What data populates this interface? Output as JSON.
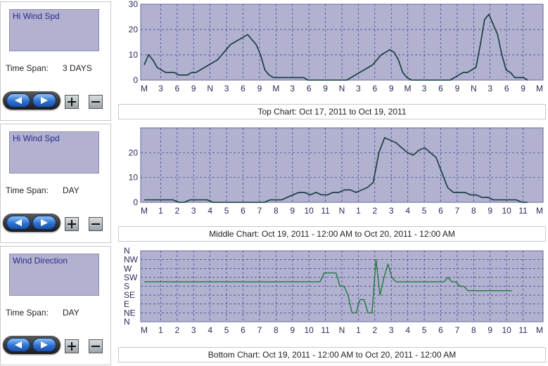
{
  "panels": [
    {
      "variable": "Hi Wind Spd",
      "time_span_label": "Time Span:",
      "time_span_value": "3 DAYS"
    },
    {
      "variable": "Hi Wind Spd",
      "time_span_label": "Time Span:",
      "time_span_value": "DAY"
    },
    {
      "variable": "Wind Direction",
      "time_span_label": "Time Span:",
      "time_span_value": "DAY"
    }
  ],
  "captions": {
    "top": "Top Chart:  Oct 17, 2011  to  Oct 19, 2011",
    "middle": "Middle Chart:  Oct 19, 2011 - 12:00 AM  to  Oct 20, 2011 - 12:00 AM",
    "bottom": "Bottom Chart:  Oct 19, 2011 - 12:00 AM  to  Oct 20, 2011 - 12:00 AM"
  },
  "colors": {
    "plot_bg": "#b2b1d0",
    "speed_line": "#0f3b38",
    "direction_line": "#1f7a3c",
    "grid": "#3a3a8a"
  },
  "chart_data": [
    {
      "type": "line",
      "series": [
        {
          "values": [
            6,
            10,
            8,
            5,
            4,
            3,
            3,
            3,
            2,
            2,
            2,
            3,
            3,
            4,
            5,
            6,
            7,
            8,
            10,
            12,
            14,
            15,
            16,
            17,
            18,
            16,
            14,
            10,
            4,
            2,
            1,
            1,
            1,
            1,
            1,
            1,
            1,
            1,
            0,
            0,
            0,
            0,
            0,
            0,
            0,
            0,
            0,
            0,
            1,
            2,
            3,
            4,
            5,
            6,
            8,
            10,
            11,
            12,
            11,
            8,
            3,
            1,
            0,
            0,
            0,
            0,
            0,
            0,
            0,
            0,
            0,
            0,
            1,
            2,
            3,
            3,
            4,
            5,
            14,
            24,
            26,
            22,
            18,
            10,
            4,
            3,
            1,
            1,
            1,
            0
          ]
        }
      ],
      "x_tick_labels": [
        "M",
        "3",
        "6",
        "9",
        "N",
        "3",
        "6",
        "9",
        "M",
        "3",
        "6",
        "9",
        "N",
        "3",
        "6",
        "9",
        "M",
        "3",
        "6",
        "9",
        "N",
        "3",
        "6",
        "9",
        "M"
      ],
      "y_ticks": [
        0,
        10,
        20,
        30
      ],
      "ylim": [
        0,
        30
      ],
      "grid": true
    },
    {
      "type": "line",
      "series": [
        {
          "values": [
            1,
            1,
            1,
            1,
            1,
            1,
            0,
            0,
            1,
            1,
            1,
            1,
            0,
            0,
            0,
            0,
            0,
            0,
            0,
            0,
            0,
            0,
            1,
            1,
            1,
            2,
            3,
            4,
            4,
            3,
            4,
            3,
            3,
            4,
            4,
            5,
            5,
            4,
            5,
            6,
            8,
            20,
            26,
            25,
            24,
            22,
            20,
            19,
            21,
            22,
            20,
            18,
            12,
            6,
            4,
            4,
            4,
            3,
            3,
            2,
            2,
            1,
            1,
            1,
            1,
            1,
            0,
            0
          ]
        }
      ],
      "x_tick_labels": [
        "M",
        "1",
        "2",
        "3",
        "4",
        "5",
        "6",
        "7",
        "8",
        "9",
        "10",
        "11",
        "N",
        "1",
        "2",
        "3",
        "4",
        "5",
        "6",
        "7",
        "8",
        "9",
        "10",
        "11",
        "M"
      ],
      "y_ticks": [
        0,
        10,
        20
      ],
      "ylim": [
        0,
        30
      ],
      "grid": true
    },
    {
      "type": "line",
      "series": [
        {
          "values": [
            9,
            9,
            9,
            9,
            9,
            9,
            9,
            9,
            9,
            9,
            9,
            9,
            9,
            9,
            9,
            9,
            9,
            9,
            9,
            9,
            9,
            9,
            9,
            9,
            9,
            9,
            9,
            9,
            9,
            9,
            9,
            9,
            9,
            9,
            9,
            9,
            9,
            9,
            9,
            9,
            9,
            9,
            9,
            9,
            9,
            11,
            11,
            11,
            11,
            8,
            8,
            6,
            2,
            2,
            5,
            5,
            2,
            2,
            14,
            6,
            10,
            13,
            10,
            9,
            9,
            9,
            9,
            9,
            9,
            9,
            9,
            9,
            9,
            9,
            9,
            9,
            10,
            9,
            9,
            8,
            8,
            7,
            7,
            7,
            7,
            7,
            7,
            7,
            7,
            7,
            7,
            7,
            7
          ]
        }
      ],
      "y_tick_labels": [
        "N",
        "NW",
        "W",
        "SW",
        "S",
        "SE",
        "E",
        "NE",
        "N"
      ],
      "x_tick_labels": [
        "M",
        "1",
        "2",
        "3",
        "4",
        "5",
        "6",
        "7",
        "8",
        "9",
        "10",
        "11",
        "N",
        "1",
        "2",
        "3",
        "4",
        "5",
        "6",
        "7",
        "8",
        "9",
        "10",
        "11",
        "M"
      ],
      "ylim": [
        0,
        16
      ],
      "grid": true
    }
  ]
}
